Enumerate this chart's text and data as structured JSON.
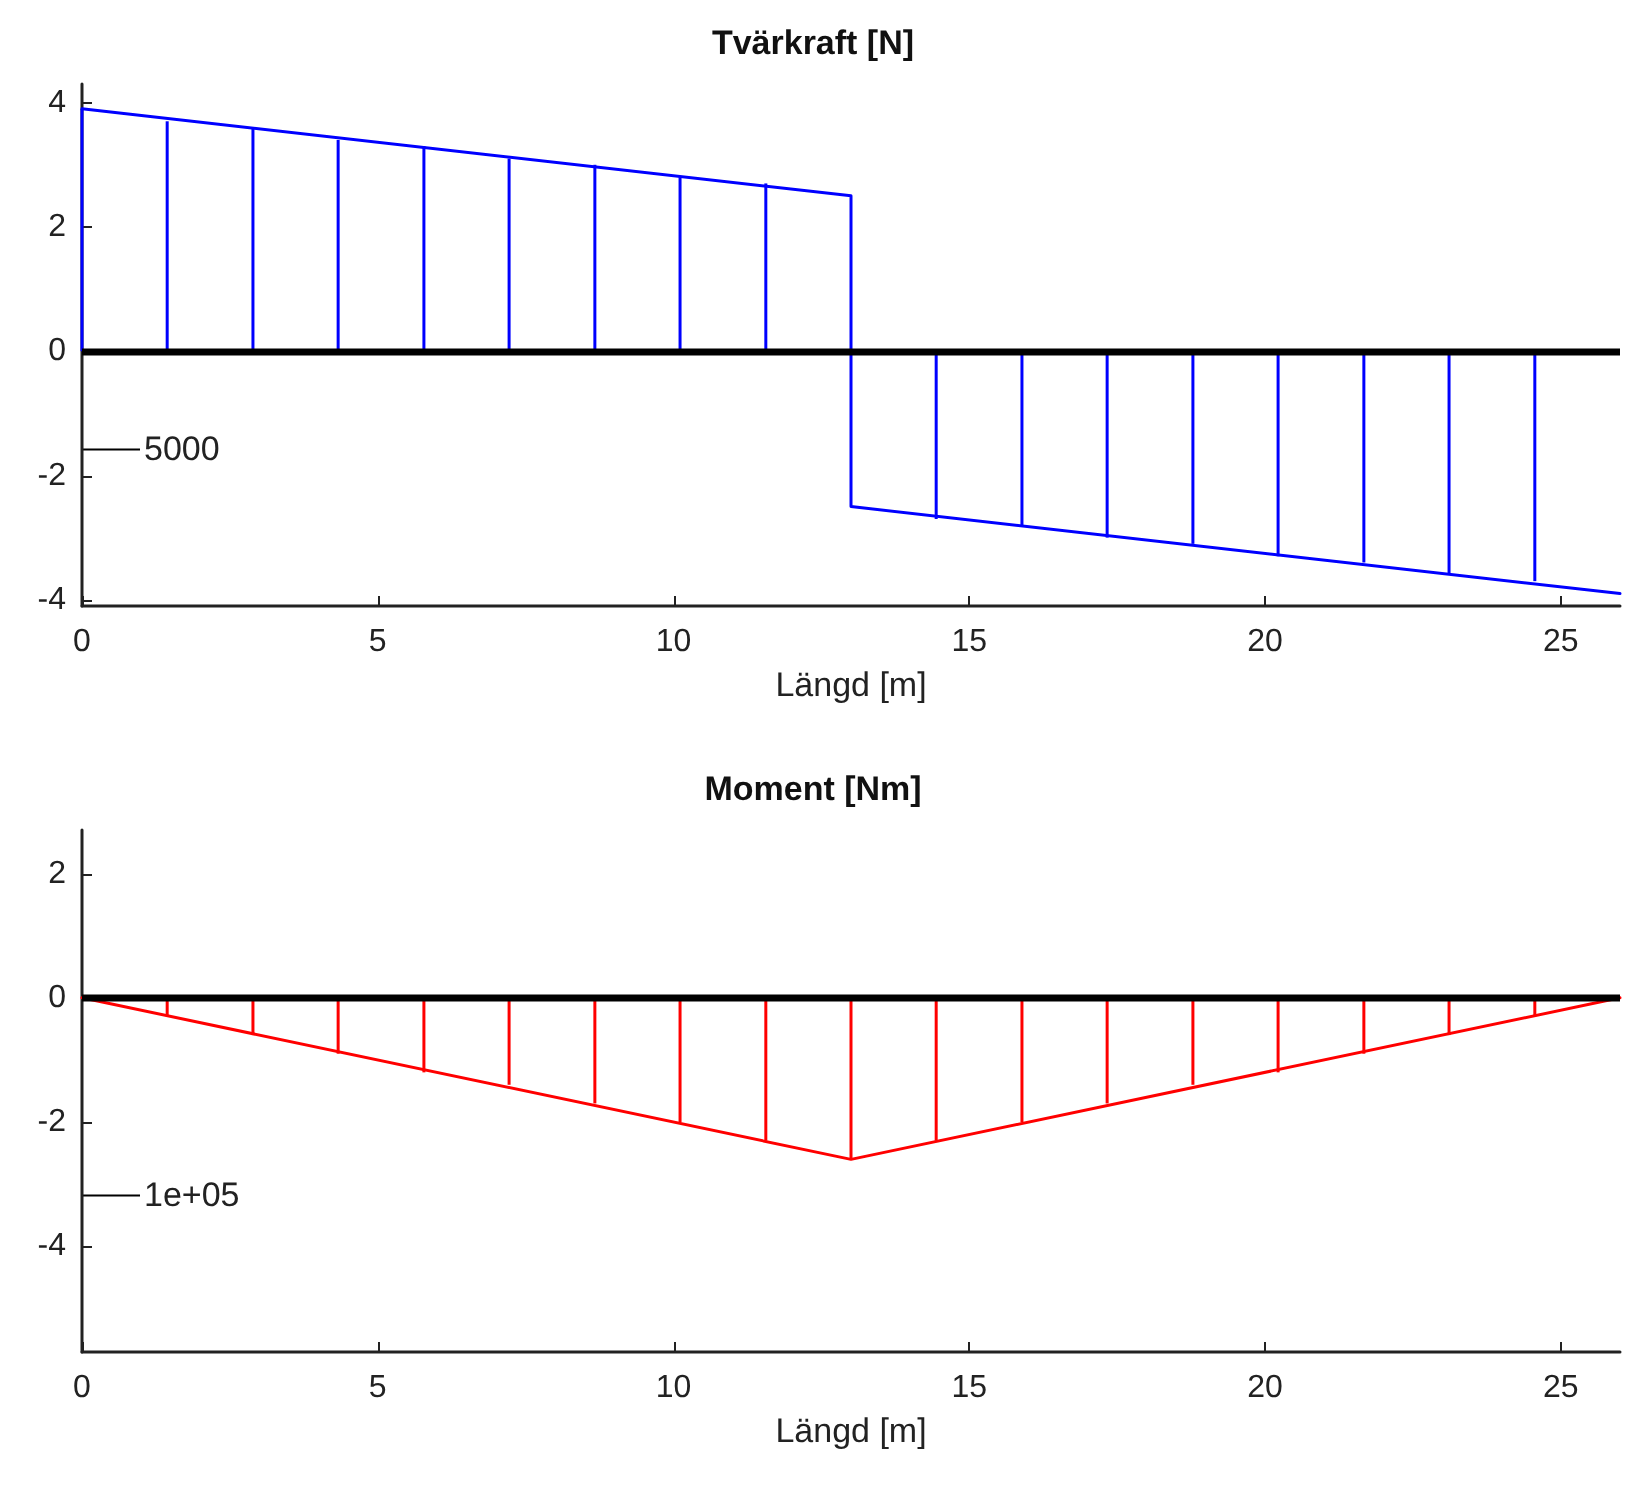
{
  "chart_data": [
    {
      "type": "line",
      "title": "Tvärkraft [N]",
      "xlabel": "Längd [m]",
      "xlim": [
        0,
        26
      ],
      "xticks": [
        0,
        5,
        10,
        15,
        20,
        25
      ],
      "ylim": [
        -4.1,
        4.3
      ],
      "yticks": [
        -4,
        -2,
        0,
        2,
        4
      ],
      "grid": false,
      "marker": "none",
      "line_style": "solid",
      "series": [
        {
          "color": "#0000ff",
          "x": [
            0,
            13,
            13,
            26
          ],
          "values": [
            3.9,
            2.5,
            -2.5,
            -3.9
          ]
        },
        {
          "type": "bar",
          "color": "#0000ff",
          "x": [
            0,
            1.44,
            2.89,
            4.33,
            5.78,
            7.22,
            8.67,
            10.11,
            11.56,
            14.44,
            15.89,
            17.33,
            18.78,
            20.22,
            21.67,
            23.11,
            24.56
          ],
          "values": [
            3.9,
            3.7,
            3.6,
            3.4,
            3.3,
            3.1,
            3.0,
            2.8,
            2.7,
            -2.7,
            -2.8,
            -3.0,
            -3.1,
            -3.3,
            -3.4,
            -3.6,
            -3.7
          ]
        }
      ],
      "ref_lines": [
        {
          "axis": "y",
          "value": 0,
          "color": "#000000"
        }
      ],
      "annotations": [
        "5000"
      ]
    },
    {
      "type": "line",
      "title": "Moment [Nm]",
      "xlabel": "Längd [m]",
      "xlim": [
        0,
        26
      ],
      "xticks": [
        0,
        5,
        10,
        15,
        20,
        25
      ],
      "ylim": [
        -5.7,
        2.7
      ],
      "yticks": [
        -4,
        -2,
        0,
        2
      ],
      "grid": false,
      "marker": "none",
      "line_style": "solid",
      "series": [
        {
          "color": "#ff0000",
          "x": [
            0,
            13,
            26
          ],
          "values": [
            0,
            -2.6,
            0
          ]
        },
        {
          "type": "bar",
          "color": "#ff0000",
          "x": [
            1.44,
            2.89,
            4.33,
            5.78,
            7.22,
            8.67,
            10.11,
            11.56,
            13,
            14.44,
            15.89,
            17.33,
            18.78,
            20.22,
            21.67,
            23.11,
            24.56
          ],
          "values": [
            -0.3,
            -0.6,
            -0.9,
            -1.2,
            -1.4,
            -1.7,
            -2.0,
            -2.3,
            -2.6,
            -2.3,
            -2.0,
            -1.7,
            -1.4,
            -1.2,
            -0.9,
            -0.6,
            -0.3
          ]
        }
      ],
      "ref_lines": [
        {
          "axis": "y",
          "value": 0,
          "color": "#000000"
        }
      ],
      "annotations": [
        "1e+05"
      ]
    }
  ]
}
